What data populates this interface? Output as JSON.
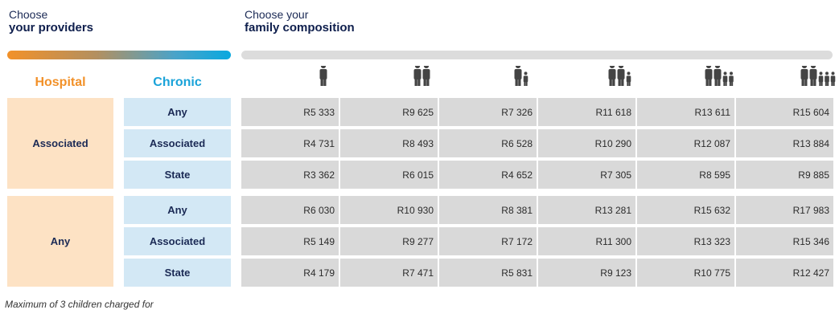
{
  "header": {
    "providers": {
      "line1": "Choose",
      "line2": "your providers"
    },
    "family": {
      "line1": "Choose your",
      "line2": "family composition"
    }
  },
  "columns": {
    "hospital": "Hospital",
    "chronic": "Chronic"
  },
  "family_icons": [
    {
      "name": "1-adult-icon",
      "adults": 1,
      "children": 0
    },
    {
      "name": "2-adults-icon",
      "adults": 2,
      "children": 0
    },
    {
      "name": "1-adult-1-child-icon",
      "adults": 1,
      "children": 1
    },
    {
      "name": "2-adults-1-child-icon",
      "adults": 2,
      "children": 1
    },
    {
      "name": "2-adults-2-children-icon",
      "adults": 2,
      "children": 2
    },
    {
      "name": "2-adults-3-children-icon",
      "adults": 2,
      "children": 3
    }
  ],
  "groups": [
    {
      "hospital": "Associated",
      "rows": [
        {
          "chronic": "Any",
          "prices": [
            "R5 333",
            "R9 625",
            "R7 326",
            "R11 618",
            "R13 611",
            "R15 604"
          ]
        },
        {
          "chronic": "Associated",
          "prices": [
            "R4 731",
            "R8 493",
            "R6 528",
            "R10 290",
            "R12 087",
            "R13 884"
          ]
        },
        {
          "chronic": "State",
          "prices": [
            "R3 362",
            "R6 015",
            "R4 652",
            "R7 305",
            "R8 595",
            "R9 885"
          ]
        }
      ]
    },
    {
      "hospital": "Any",
      "rows": [
        {
          "chronic": "Any",
          "prices": [
            "R6 030",
            "R10 930",
            "R8 381",
            "R13 281",
            "R15 632",
            "R17 983"
          ]
        },
        {
          "chronic": "Associated",
          "prices": [
            "R5 149",
            "R9 277",
            "R7 172",
            "R11 300",
            "R13 323",
            "R15 346"
          ]
        },
        {
          "chronic": "State",
          "prices": [
            "R4 179",
            "R7 471",
            "R5 831",
            "R9 123",
            "R10 775",
            "R12 427"
          ]
        }
      ]
    }
  ],
  "footnote": "Maximum of 3 children charged for",
  "colors": {
    "hospital_accent": "#f29129",
    "chronic_accent": "#1aa3d9",
    "navy": "#1b2a55"
  }
}
